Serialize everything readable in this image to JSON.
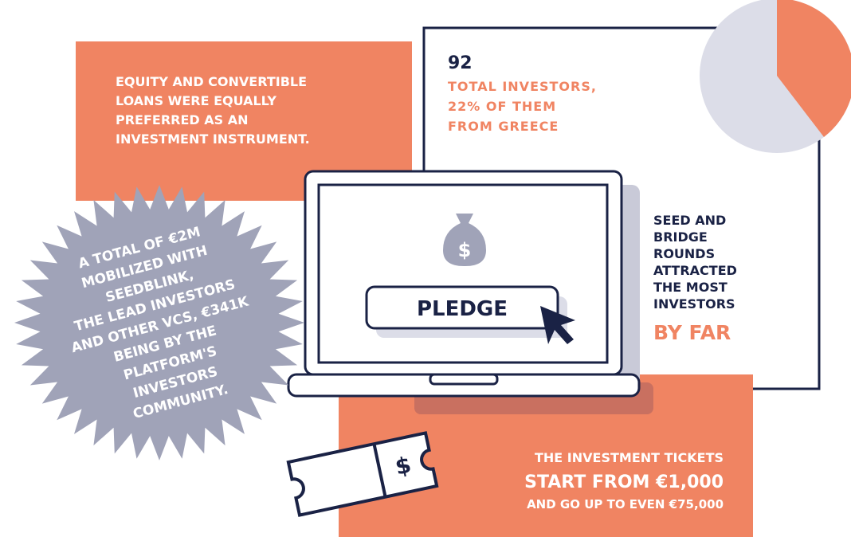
{
  "equity_box": {
    "lines": [
      "EQUITY AND CONVERTIBLE",
      "LOANS WERE EQUALLY",
      "PREFERRED AS AN",
      "INVESTMENT INSTRUMENT."
    ]
  },
  "investors_box": {
    "count": "92",
    "lines": [
      "TOTAL INVESTORS,",
      "22% OF THEM",
      "FROM GREECE"
    ]
  },
  "rounds_box": {
    "lines": [
      "SEED AND",
      "BRIDGE",
      "ROUNDS",
      "ATTRACTED",
      "THE MOST",
      "INVESTORS"
    ],
    "emphasis": "BY FAR"
  },
  "laptop": {
    "button": "PLEDGE"
  },
  "starburst": {
    "lines": [
      "A TOTAL OF €2M",
      "MOBILIZED WITH",
      "SEEDBLINK,",
      "THE LEAD INVESTORS",
      "AND OTHER VCS, €341K",
      "BEING BY THE",
      "PLATFORM'S",
      "INVESTORS",
      "COMMUNITY."
    ]
  },
  "tickets_box": {
    "line1": "THE INVESTMENT TICKETS",
    "line2": "START FROM €1,000",
    "line3": "AND GO UP TO EVEN €75,000"
  }
}
